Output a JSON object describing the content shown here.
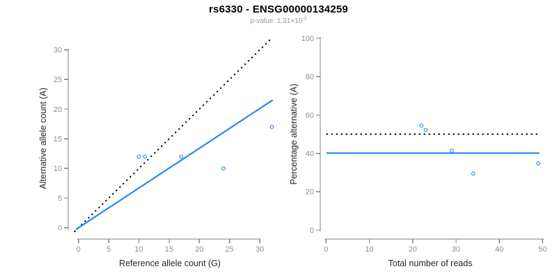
{
  "title": "rs6330 - ENSG00000134259",
  "subtitle": {
    "text": "p-value: 1.31×10",
    "exponent": "-2"
  },
  "colors": {
    "accent_blue": "#2489ee",
    "point_blue": "#2489ee",
    "dotted_black": "#000000",
    "axis_gray": "#7f7f7f",
    "tick_label_gray": "#8e8e8e",
    "axis_title_dark": "#262626",
    "background": "#ffffff"
  },
  "chart_data": [
    {
      "type": "scatter",
      "name": "allele-counts-scatter",
      "xlabel": "Reference allele count (G)",
      "ylabel": "Alternative allele count (A)",
      "xlim": [
        0,
        32
      ],
      "ylim": [
        0,
        30
      ],
      "xticks": [
        0,
        5,
        10,
        15,
        20,
        25,
        30
      ],
      "yticks": [
        0,
        5,
        10,
        15,
        20,
        25,
        30
      ],
      "points": [
        [
          10,
          12
        ],
        [
          11,
          12
        ],
        [
          17,
          12
        ],
        [
          24,
          10
        ],
        [
          32,
          17
        ]
      ],
      "lines": [
        {
          "name": "identity-line",
          "type": "ab",
          "slope": 1,
          "intercept": 0,
          "x_range": [
            -0.7,
            31.7
          ],
          "style": "dotted",
          "color_key": "dotted_black"
        },
        {
          "name": "fit-line",
          "type": "ab",
          "slope": 0.67,
          "intercept": 0,
          "x_range": [
            -0.45,
            32.15
          ],
          "style": "solid",
          "color_key": "accent_blue"
        }
      ],
      "grid": false,
      "legend": null
    },
    {
      "type": "scatter",
      "name": "percentage-alternative-scatter",
      "xlabel": "Total number of reads",
      "ylabel": "Percentage alternative (A)",
      "xlim": [
        0,
        50
      ],
      "ylim": [
        0,
        100
      ],
      "xticks": [
        0,
        10,
        20,
        30,
        40,
        50
      ],
      "yticks": [
        0,
        20,
        40,
        60,
        80,
        100
      ],
      "points": [
        [
          22,
          54.5
        ],
        [
          23,
          52.2
        ],
        [
          29,
          41.4
        ],
        [
          34,
          29.4
        ],
        [
          49,
          34.7
        ]
      ],
      "lines": [
        {
          "name": "expected-50-percent-line",
          "type": "h",
          "y": 50,
          "x_range": [
            0.05,
            49.3
          ],
          "style": "dotted",
          "color_key": "dotted_black"
        },
        {
          "name": "observed-ratio-line",
          "type": "h",
          "y": 40.1,
          "x_range": [
            0.05,
            49.3
          ],
          "style": "solid",
          "color_key": "accent_blue"
        }
      ],
      "grid": false,
      "legend": null
    }
  ]
}
